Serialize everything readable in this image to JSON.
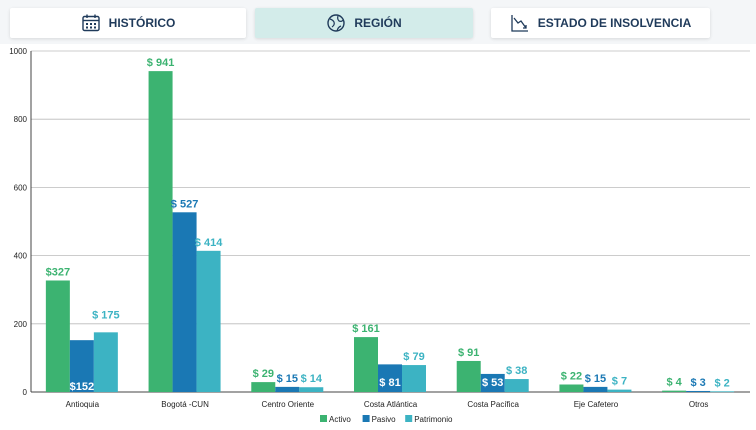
{
  "tabs": [
    {
      "label": "HISTÓRICO",
      "icon": "calendar-icon",
      "active": false
    },
    {
      "label": "REGIÓN",
      "icon": "globe-icon",
      "active": true
    },
    {
      "label": "ESTADO DE INSOLVENCIA",
      "icon": "chart-down-icon",
      "active": false
    }
  ],
  "colors": {
    "activo": "#3cb371",
    "pasivo": "#1a78b4",
    "patrimonio": "#3cb3c3"
  },
  "chart_data": {
    "type": "bar",
    "categories": [
      "Antioquia",
      "Bogotá -CUN",
      "Centro Oriente",
      "Costa Atlántica",
      "Costa Pacífica",
      "Eje Cafetero",
      "Otros"
    ],
    "series": [
      {
        "name": "Activo",
        "values": [
          327,
          941,
          29,
          161,
          91,
          22,
          4
        ],
        "labels": [
          "$327",
          "$ 941",
          "$ 29",
          "$ 161",
          "$ 91",
          "$ 22",
          "$ 4"
        ]
      },
      {
        "name": "Pasivo",
        "values": [
          152,
          527,
          15,
          81,
          53,
          15,
          3
        ],
        "labels": [
          "$152",
          "$ 527",
          "$ 15",
          "$ 81",
          "$ 53",
          "$ 15",
          "$ 3"
        ]
      },
      {
        "name": "Patrimonio",
        "values": [
          175,
          414,
          14,
          79,
          38,
          7,
          2
        ],
        "labels": [
          "$ 175",
          "$ 414",
          "$ 14",
          "$ 79",
          "$ 38",
          "$ 7",
          "$ 2"
        ]
      }
    ],
    "yticks": [
      "0",
      "200",
      "400",
      "600",
      "800",
      "1000"
    ],
    "ylim": [
      0,
      1000
    ],
    "grid": true,
    "legend": "bottom"
  }
}
